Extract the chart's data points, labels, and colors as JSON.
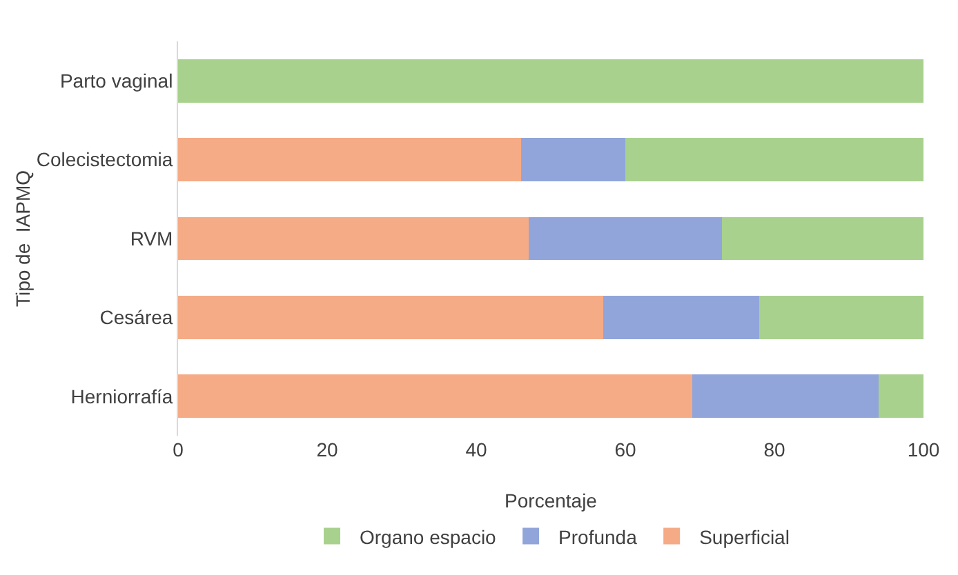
{
  "chart_data": {
    "type": "bar",
    "orientation": "horizontal",
    "stacked": true,
    "xlabel": "Porcentaje",
    "ylabel": "Tipo de  IAPMQ",
    "categories": [
      "Parto vaginal",
      "Colecistectomia",
      "RVM",
      "Cesárea",
      "Herniorrafía"
    ],
    "series": [
      {
        "name": "Superficial",
        "color": "#f5ab86",
        "values": [
          0,
          46,
          47,
          57,
          69
        ]
      },
      {
        "name": "Profunda",
        "color": "#91a5da",
        "values": [
          0,
          14,
          26,
          21,
          25
        ]
      },
      {
        "name": "Organo espacio",
        "color": "#a9d18e",
        "values": [
          100,
          40,
          27,
          22,
          6
        ]
      }
    ],
    "xlim": [
      0,
      100
    ],
    "xticks": [
      0,
      20,
      40,
      60,
      80,
      100
    ],
    "grid": false,
    "legend": "bottom"
  }
}
